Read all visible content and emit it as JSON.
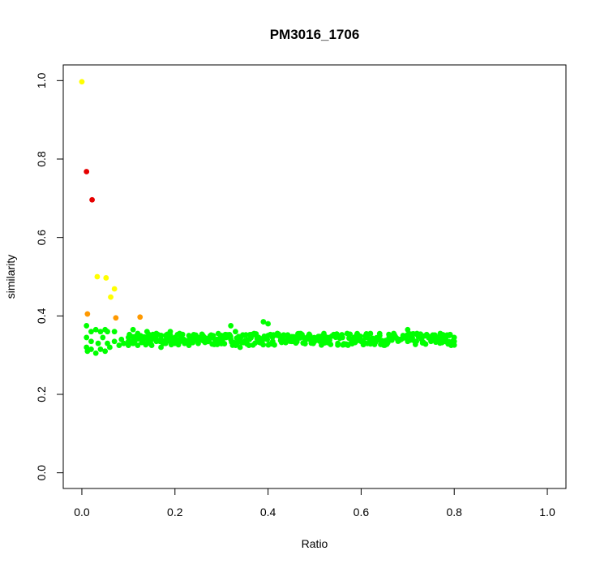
{
  "chart_data": {
    "type": "scatter",
    "title": "PM3016_1706",
    "xlabel": "Ratio",
    "ylabel": "similarity",
    "xlim": [
      -0.04,
      1.04
    ],
    "ylim": [
      -0.04,
      1.04
    ],
    "x_ticks": [
      "0.0",
      "0.2",
      "0.4",
      "0.6",
      "0.8",
      "1.0"
    ],
    "y_ticks": [
      "0.0",
      "0.2",
      "0.4",
      "0.6",
      "0.8",
      "1.0"
    ],
    "grid": false,
    "legend": "none",
    "colors": {
      "red": "#e60000",
      "orange": "#ff9900",
      "yellow": "#ffff00",
      "green": "#00ff00"
    },
    "highlighted_points": [
      {
        "x": 0.0,
        "y": 0.997,
        "color": "yellow"
      },
      {
        "x": 0.01,
        "y": 0.768,
        "color": "red"
      },
      {
        "x": 0.022,
        "y": 0.696,
        "color": "red"
      },
      {
        "x": 0.033,
        "y": 0.5,
        "color": "yellow"
      },
      {
        "x": 0.052,
        "y": 0.497,
        "color": "yellow"
      },
      {
        "x": 0.07,
        "y": 0.469,
        "color": "yellow"
      },
      {
        "x": 0.062,
        "y": 0.448,
        "color": "yellow"
      },
      {
        "x": 0.012,
        "y": 0.405,
        "color": "orange"
      },
      {
        "x": 0.073,
        "y": 0.395,
        "color": "orange"
      },
      {
        "x": 0.125,
        "y": 0.397,
        "color": "orange"
      }
    ],
    "green_points": [
      {
        "x": 0.01,
        "y": 0.375
      },
      {
        "x": 0.01,
        "y": 0.345
      },
      {
        "x": 0.01,
        "y": 0.32
      },
      {
        "x": 0.012,
        "y": 0.31
      },
      {
        "x": 0.02,
        "y": 0.36
      },
      {
        "x": 0.02,
        "y": 0.335
      },
      {
        "x": 0.02,
        "y": 0.315
      },
      {
        "x": 0.03,
        "y": 0.365
      },
      {
        "x": 0.03,
        "y": 0.305
      },
      {
        "x": 0.035,
        "y": 0.33
      },
      {
        "x": 0.04,
        "y": 0.36
      },
      {
        "x": 0.04,
        "y": 0.315
      },
      {
        "x": 0.045,
        "y": 0.345
      },
      {
        "x": 0.05,
        "y": 0.365
      },
      {
        "x": 0.05,
        "y": 0.31
      },
      {
        "x": 0.055,
        "y": 0.33
      },
      {
        "x": 0.055,
        "y": 0.36
      },
      {
        "x": 0.06,
        "y": 0.32
      },
      {
        "x": 0.07,
        "y": 0.335
      },
      {
        "x": 0.07,
        "y": 0.36
      },
      {
        "x": 0.08,
        "y": 0.325
      },
      {
        "x": 0.085,
        "y": 0.34
      },
      {
        "x": 0.09,
        "y": 0.33
      },
      {
        "x": 0.1,
        "y": 0.335
      },
      {
        "x": 0.1,
        "y": 0.345
      },
      {
        "x": 0.11,
        "y": 0.365
      },
      {
        "x": 0.11,
        "y": 0.33
      },
      {
        "x": 0.12,
        "y": 0.355
      },
      {
        "x": 0.12,
        "y": 0.325
      },
      {
        "x": 0.13,
        "y": 0.34
      },
      {
        "x": 0.14,
        "y": 0.36
      },
      {
        "x": 0.14,
        "y": 0.33
      },
      {
        "x": 0.15,
        "y": 0.345
      },
      {
        "x": 0.15,
        "y": 0.325
      },
      {
        "x": 0.16,
        "y": 0.355
      },
      {
        "x": 0.16,
        "y": 0.335
      },
      {
        "x": 0.17,
        "y": 0.34
      },
      {
        "x": 0.17,
        "y": 0.32
      },
      {
        "x": 0.18,
        "y": 0.35
      },
      {
        "x": 0.18,
        "y": 0.33
      },
      {
        "x": 0.19,
        "y": 0.36
      },
      {
        "x": 0.19,
        "y": 0.335
      },
      {
        "x": 0.2,
        "y": 0.345
      },
      {
        "x": 0.2,
        "y": 0.33
      },
      {
        "x": 0.21,
        "y": 0.355
      },
      {
        "x": 0.21,
        "y": 0.34
      },
      {
        "x": 0.22,
        "y": 0.335
      },
      {
        "x": 0.23,
        "y": 0.35
      },
      {
        "x": 0.23,
        "y": 0.325
      },
      {
        "x": 0.24,
        "y": 0.34
      },
      {
        "x": 0.25,
        "y": 0.345
      },
      {
        "x": 0.25,
        "y": 0.33
      },
      {
        "x": 0.26,
        "y": 0.35
      },
      {
        "x": 0.27,
        "y": 0.335
      },
      {
        "x": 0.28,
        "y": 0.345
      },
      {
        "x": 0.29,
        "y": 0.34
      },
      {
        "x": 0.3,
        "y": 0.35
      },
      {
        "x": 0.3,
        "y": 0.33
      },
      {
        "x": 0.31,
        "y": 0.345
      },
      {
        "x": 0.32,
        "y": 0.375
      },
      {
        "x": 0.32,
        "y": 0.34
      },
      {
        "x": 0.33,
        "y": 0.36
      },
      {
        "x": 0.33,
        "y": 0.33
      },
      {
        "x": 0.34,
        "y": 0.345
      },
      {
        "x": 0.34,
        "y": 0.32
      },
      {
        "x": 0.35,
        "y": 0.35
      },
      {
        "x": 0.36,
        "y": 0.34
      },
      {
        "x": 0.37,
        "y": 0.355
      },
      {
        "x": 0.38,
        "y": 0.345
      },
      {
        "x": 0.39,
        "y": 0.385
      },
      {
        "x": 0.39,
        "y": 0.34
      },
      {
        "x": 0.4,
        "y": 0.38
      },
      {
        "x": 0.4,
        "y": 0.35
      },
      {
        "x": 0.41,
        "y": 0.335
      },
      {
        "x": 0.42,
        "y": 0.355
      },
      {
        "x": 0.43,
        "y": 0.34
      },
      {
        "x": 0.44,
        "y": 0.35
      },
      {
        "x": 0.45,
        "y": 0.335
      },
      {
        "x": 0.46,
        "y": 0.345
      },
      {
        "x": 0.47,
        "y": 0.355
      },
      {
        "x": 0.48,
        "y": 0.34
      },
      {
        "x": 0.49,
        "y": 0.35
      },
      {
        "x": 0.5,
        "y": 0.335
      },
      {
        "x": 0.51,
        "y": 0.345
      },
      {
        "x": 0.52,
        "y": 0.355
      },
      {
        "x": 0.53,
        "y": 0.34
      },
      {
        "x": 0.54,
        "y": 0.35
      },
      {
        "x": 0.55,
        "y": 0.33
      },
      {
        "x": 0.56,
        "y": 0.345
      },
      {
        "x": 0.57,
        "y": 0.355
      },
      {
        "x": 0.58,
        "y": 0.34
      },
      {
        "x": 0.59,
        "y": 0.35
      },
      {
        "x": 0.6,
        "y": 0.335
      },
      {
        "x": 0.61,
        "y": 0.345
      },
      {
        "x": 0.62,
        "y": 0.355
      },
      {
        "x": 0.63,
        "y": 0.34
      },
      {
        "x": 0.64,
        "y": 0.35
      },
      {
        "x": 0.65,
        "y": 0.335
      },
      {
        "x": 0.66,
        "y": 0.345
      },
      {
        "x": 0.67,
        "y": 0.355
      },
      {
        "x": 0.68,
        "y": 0.34
      },
      {
        "x": 0.69,
        "y": 0.35
      },
      {
        "x": 0.7,
        "y": 0.365
      },
      {
        "x": 0.7,
        "y": 0.335
      },
      {
        "x": 0.71,
        "y": 0.345
      },
      {
        "x": 0.72,
        "y": 0.355
      },
      {
        "x": 0.73,
        "y": 0.34
      },
      {
        "x": 0.74,
        "y": 0.35
      },
      {
        "x": 0.75,
        "y": 0.335
      },
      {
        "x": 0.76,
        "y": 0.345
      },
      {
        "x": 0.77,
        "y": 0.355
      },
      {
        "x": 0.78,
        "y": 0.34
      },
      {
        "x": 0.79,
        "y": 0.35
      },
      {
        "x": 0.8,
        "y": 0.335
      },
      {
        "x": 0.8,
        "y": 0.345
      }
    ],
    "green_band": {
      "x_range": [
        0.1,
        0.8
      ],
      "y_range": [
        0.325,
        0.355
      ]
    }
  }
}
